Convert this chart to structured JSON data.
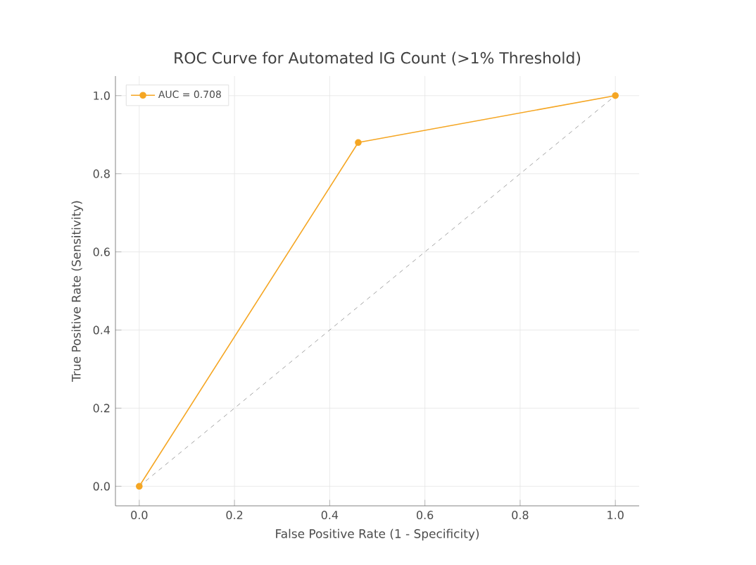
{
  "chart_data": {
    "type": "line",
    "title": "ROC Curve for Automated IG Count (>1% Threshold)",
    "xlabel": "False Positive Rate (1 - Specificity)",
    "ylabel": "True Positive Rate (Sensitivity)",
    "series": [
      {
        "name": "AUC = 0.708",
        "color": "#f5a623",
        "x": [
          0,
          0.46,
          1
        ],
        "values": [
          0,
          0.88,
          1
        ],
        "marker": "circle",
        "line_style": "solid"
      },
      {
        "color": "#8c8c8c",
        "x": [
          0,
          1
        ],
        "values": [
          0,
          1
        ],
        "marker": "none",
        "line_style": "dashed"
      }
    ],
    "xlim": [
      -0.05,
      1.05
    ],
    "ylim": [
      -0.05,
      1.05
    ],
    "xticks": [
      {
        "value": 0,
        "label": "0.0"
      },
      0.2,
      0.4,
      0.6,
      0.8,
      {
        "value": 1,
        "label": "1.0"
      }
    ],
    "yticks": [
      {
        "value": 0,
        "label": "0.0"
      },
      0.2,
      0.4,
      0.6,
      0.8,
      {
        "value": 1,
        "label": "1.0"
      }
    ],
    "grid": true,
    "legend": "top left"
  }
}
